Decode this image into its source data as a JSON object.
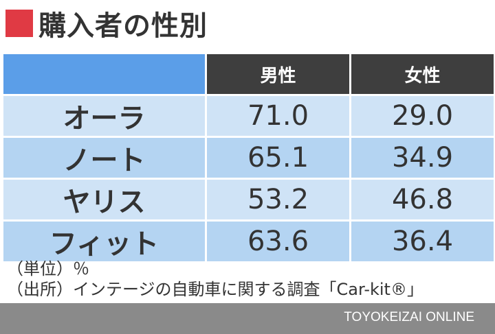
{
  "title": "購入者の性別",
  "chart_data": {
    "type": "table",
    "columns": [
      "男性",
      "女性"
    ],
    "rows": [
      {
        "label": "オーラ",
        "values": [
          "71.0",
          "29.0"
        ]
      },
      {
        "label": "ノート",
        "values": [
          "65.1",
          "34.9"
        ]
      },
      {
        "label": "ヤリス",
        "values": [
          "53.2",
          "46.8"
        ]
      },
      {
        "label": "フィット",
        "values": [
          "63.6",
          "36.4"
        ]
      }
    ]
  },
  "notes": {
    "unit": "（単位）％",
    "source": "（出所）インテージの自動車に関する調査「Car-kit®」"
  },
  "footer": {
    "brand": "TOYOKEIZAI ONLINE"
  },
  "colors": {
    "title_mark": "#e03a44",
    "header_blank": "#5b9ee8",
    "header_dark": "#3e3e3e",
    "row_light": "#cfe3f6",
    "row_mid": "#b4d4f2",
    "footer_bar": "#8a8a8a"
  }
}
